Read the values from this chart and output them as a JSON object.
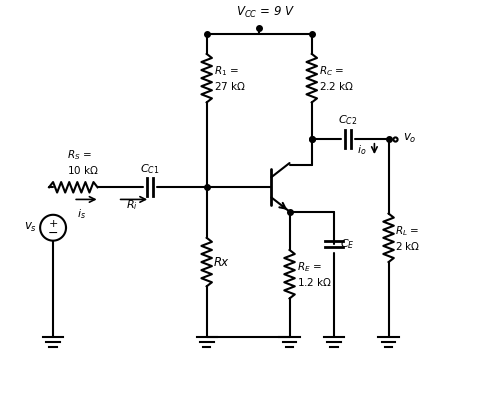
{
  "bg_color": "#ffffff",
  "line_color": "#000000",
  "text_color": "#000000",
  "fig_width": 4.78,
  "fig_height": 4.11,
  "dpi": 100,
  "labels": {
    "vcc": "V_CC = 9 V",
    "r1": "R_1 =\n27 kΩ",
    "rc": "R_C =\n2.2 kΩ",
    "rs": "R_S =\n10 kΩ",
    "cc1": "C_C1",
    "cc2": "C_C2",
    "ri": "R_i",
    "rx": "Rx",
    "re": "R_E =\n1.2 kΩ",
    "ce": "C_E",
    "rl": "R_L =\n2 kΩ",
    "vs": "v_s",
    "is": "i_s",
    "io": "i_o",
    "vo": "v_o"
  }
}
